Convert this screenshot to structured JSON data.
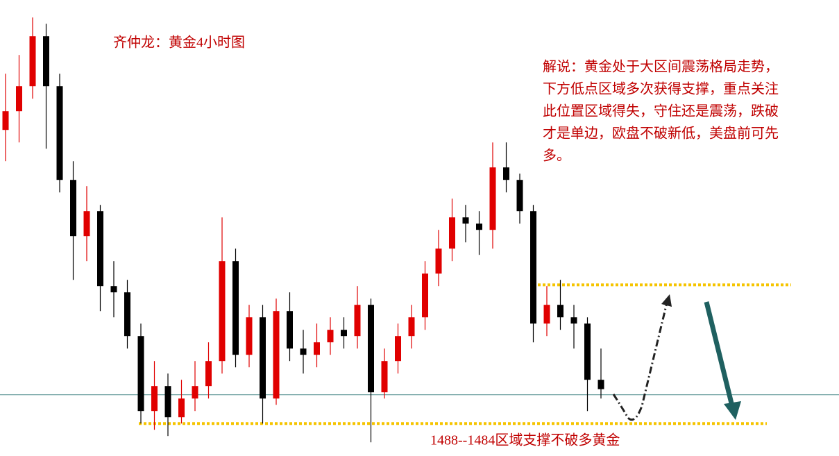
{
  "chart_data": {
    "type": "candlestick",
    "title": "齐仲龙：黄金4小时图",
    "commentary": [
      "解说：黄金处于大区间震荡格局走势，",
      "下方低点区域多次获得支撑，重点关注",
      "此位置区域得失，守住还是震荡，跌破",
      "才是单边，欧盘不破新低，美盘前可先",
      "多。"
    ],
    "annotation": "1488--1484区域支撑不破多黄金",
    "candles": [
      [
        1533,
        1542,
        1528,
        1536
      ],
      [
        1536,
        1545,
        1531,
        1540
      ],
      [
        1540,
        1551,
        1538,
        1548
      ],
      [
        1548,
        1550,
        1530,
        1540
      ],
      [
        1540,
        1542,
        1523,
        1525
      ],
      [
        1525,
        1528,
        1509,
        1516
      ],
      [
        1516,
        1524,
        1512,
        1520
      ],
      [
        1520,
        1521,
        1504,
        1508
      ],
      [
        1508,
        1512,
        1503,
        1507
      ],
      [
        1507,
        1509,
        1498,
        1500
      ],
      [
        1500,
        1502,
        1486,
        1488
      ],
      [
        1488,
        1496,
        1485,
        1492
      ],
      [
        1492,
        1494,
        1484,
        1487
      ],
      [
        1487,
        1493,
        1486,
        1490
      ],
      [
        1490,
        1496,
        1488,
        1492
      ],
      [
        1492,
        1499,
        1490,
        1496
      ],
      [
        1496,
        1519,
        1494,
        1512
      ],
      [
        1512,
        1514,
        1495,
        1497
      ],
      [
        1497,
        1505,
        1495,
        1503
      ],
      [
        1503,
        1505,
        1486,
        1490
      ],
      [
        1490,
        1506,
        1489,
        1504
      ],
      [
        1504,
        1507,
        1496,
        1498
      ],
      [
        1498,
        1501,
        1494,
        1497
      ],
      [
        1497,
        1502,
        1495,
        1499
      ],
      [
        1499,
        1503,
        1497,
        1501
      ],
      [
        1501,
        1503,
        1498,
        1500
      ],
      [
        1500,
        1508,
        1498,
        1505
      ],
      [
        1505,
        1506,
        1483,
        1491
      ],
      [
        1491,
        1498,
        1490,
        1496
      ],
      [
        1496,
        1502,
        1494,
        1500
      ],
      [
        1500,
        1505,
        1498,
        1503
      ],
      [
        1503,
        1512,
        1501,
        1510
      ],
      [
        1510,
        1517,
        1508,
        1514
      ],
      [
        1514,
        1522,
        1512,
        1519
      ],
      [
        1519,
        1521,
        1515,
        1518
      ],
      [
        1518,
        1520,
        1513,
        1517
      ],
      [
        1517,
        1531,
        1514,
        1527
      ],
      [
        1527,
        1531,
        1523,
        1525
      ],
      [
        1525,
        1526,
        1518,
        1520
      ],
      [
        1520,
        1521,
        1499,
        1502
      ],
      [
        1502,
        1508,
        1500,
        1505
      ],
      [
        1505,
        1509,
        1501,
        1503
      ],
      [
        1503,
        1505,
        1498,
        1502
      ],
      [
        1502,
        1503,
        1488,
        1493
      ],
      [
        1493,
        1498,
        1490,
        1491.5
      ]
    ],
    "up_color": "#e00000",
    "down_color": "#000000",
    "ylim": [
      1480.8,
      1553.8
    ],
    "levels": [
      1508.2,
      1486
    ],
    "level_color": "#f5c400",
    "price_line": 1490.6,
    "price_line_color": "#4f8a8a"
  }
}
